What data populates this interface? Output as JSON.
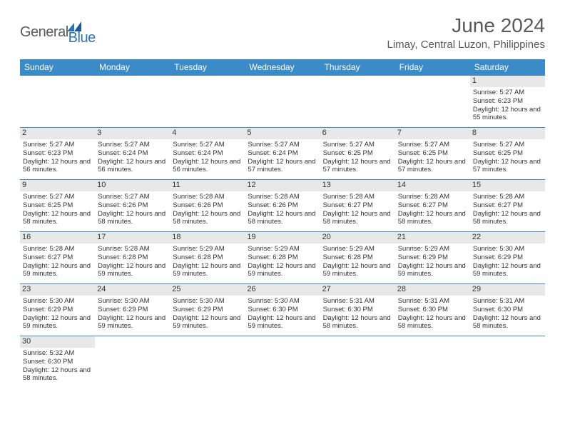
{
  "logo": {
    "general": "General",
    "blue": "Blue"
  },
  "title": "June 2024",
  "location": "Limay, Central Luzon, Philippines",
  "weekdays": [
    "Sunday",
    "Monday",
    "Tuesday",
    "Wednesday",
    "Thursday",
    "Friday",
    "Saturday"
  ],
  "colors": {
    "header_bg": "#3b8bc9",
    "daynum_bg": "#e8e8e8",
    "row_border": "#3b8bc9"
  },
  "weeks": [
    [
      null,
      null,
      null,
      null,
      null,
      null,
      {
        "n": "1",
        "sr": "Sunrise: 5:27 AM",
        "ss": "Sunset: 6:23 PM",
        "dl": "Daylight: 12 hours and 55 minutes."
      }
    ],
    [
      {
        "n": "2",
        "sr": "Sunrise: 5:27 AM",
        "ss": "Sunset: 6:23 PM",
        "dl": "Daylight: 12 hours and 56 minutes."
      },
      {
        "n": "3",
        "sr": "Sunrise: 5:27 AM",
        "ss": "Sunset: 6:24 PM",
        "dl": "Daylight: 12 hours and 56 minutes."
      },
      {
        "n": "4",
        "sr": "Sunrise: 5:27 AM",
        "ss": "Sunset: 6:24 PM",
        "dl": "Daylight: 12 hours and 56 minutes."
      },
      {
        "n": "5",
        "sr": "Sunrise: 5:27 AM",
        "ss": "Sunset: 6:24 PM",
        "dl": "Daylight: 12 hours and 57 minutes."
      },
      {
        "n": "6",
        "sr": "Sunrise: 5:27 AM",
        "ss": "Sunset: 6:25 PM",
        "dl": "Daylight: 12 hours and 57 minutes."
      },
      {
        "n": "7",
        "sr": "Sunrise: 5:27 AM",
        "ss": "Sunset: 6:25 PM",
        "dl": "Daylight: 12 hours and 57 minutes."
      },
      {
        "n": "8",
        "sr": "Sunrise: 5:27 AM",
        "ss": "Sunset: 6:25 PM",
        "dl": "Daylight: 12 hours and 57 minutes."
      }
    ],
    [
      {
        "n": "9",
        "sr": "Sunrise: 5:27 AM",
        "ss": "Sunset: 6:25 PM",
        "dl": "Daylight: 12 hours and 58 minutes."
      },
      {
        "n": "10",
        "sr": "Sunrise: 5:27 AM",
        "ss": "Sunset: 6:26 PM",
        "dl": "Daylight: 12 hours and 58 minutes."
      },
      {
        "n": "11",
        "sr": "Sunrise: 5:28 AM",
        "ss": "Sunset: 6:26 PM",
        "dl": "Daylight: 12 hours and 58 minutes."
      },
      {
        "n": "12",
        "sr": "Sunrise: 5:28 AM",
        "ss": "Sunset: 6:26 PM",
        "dl": "Daylight: 12 hours and 58 minutes."
      },
      {
        "n": "13",
        "sr": "Sunrise: 5:28 AM",
        "ss": "Sunset: 6:27 PM",
        "dl": "Daylight: 12 hours and 58 minutes."
      },
      {
        "n": "14",
        "sr": "Sunrise: 5:28 AM",
        "ss": "Sunset: 6:27 PM",
        "dl": "Daylight: 12 hours and 58 minutes."
      },
      {
        "n": "15",
        "sr": "Sunrise: 5:28 AM",
        "ss": "Sunset: 6:27 PM",
        "dl": "Daylight: 12 hours and 58 minutes."
      }
    ],
    [
      {
        "n": "16",
        "sr": "Sunrise: 5:28 AM",
        "ss": "Sunset: 6:27 PM",
        "dl": "Daylight: 12 hours and 59 minutes."
      },
      {
        "n": "17",
        "sr": "Sunrise: 5:28 AM",
        "ss": "Sunset: 6:28 PM",
        "dl": "Daylight: 12 hours and 59 minutes."
      },
      {
        "n": "18",
        "sr": "Sunrise: 5:29 AM",
        "ss": "Sunset: 6:28 PM",
        "dl": "Daylight: 12 hours and 59 minutes."
      },
      {
        "n": "19",
        "sr": "Sunrise: 5:29 AM",
        "ss": "Sunset: 6:28 PM",
        "dl": "Daylight: 12 hours and 59 minutes."
      },
      {
        "n": "20",
        "sr": "Sunrise: 5:29 AM",
        "ss": "Sunset: 6:28 PM",
        "dl": "Daylight: 12 hours and 59 minutes."
      },
      {
        "n": "21",
        "sr": "Sunrise: 5:29 AM",
        "ss": "Sunset: 6:29 PM",
        "dl": "Daylight: 12 hours and 59 minutes."
      },
      {
        "n": "22",
        "sr": "Sunrise: 5:30 AM",
        "ss": "Sunset: 6:29 PM",
        "dl": "Daylight: 12 hours and 59 minutes."
      }
    ],
    [
      {
        "n": "23",
        "sr": "Sunrise: 5:30 AM",
        "ss": "Sunset: 6:29 PM",
        "dl": "Daylight: 12 hours and 59 minutes."
      },
      {
        "n": "24",
        "sr": "Sunrise: 5:30 AM",
        "ss": "Sunset: 6:29 PM",
        "dl": "Daylight: 12 hours and 59 minutes."
      },
      {
        "n": "25",
        "sr": "Sunrise: 5:30 AM",
        "ss": "Sunset: 6:29 PM",
        "dl": "Daylight: 12 hours and 59 minutes."
      },
      {
        "n": "26",
        "sr": "Sunrise: 5:30 AM",
        "ss": "Sunset: 6:30 PM",
        "dl": "Daylight: 12 hours and 59 minutes."
      },
      {
        "n": "27",
        "sr": "Sunrise: 5:31 AM",
        "ss": "Sunset: 6:30 PM",
        "dl": "Daylight: 12 hours and 58 minutes."
      },
      {
        "n": "28",
        "sr": "Sunrise: 5:31 AM",
        "ss": "Sunset: 6:30 PM",
        "dl": "Daylight: 12 hours and 58 minutes."
      },
      {
        "n": "29",
        "sr": "Sunrise: 5:31 AM",
        "ss": "Sunset: 6:30 PM",
        "dl": "Daylight: 12 hours and 58 minutes."
      }
    ],
    [
      {
        "n": "30",
        "sr": "Sunrise: 5:32 AM",
        "ss": "Sunset: 6:30 PM",
        "dl": "Daylight: 12 hours and 58 minutes."
      },
      null,
      null,
      null,
      null,
      null,
      null
    ]
  ]
}
